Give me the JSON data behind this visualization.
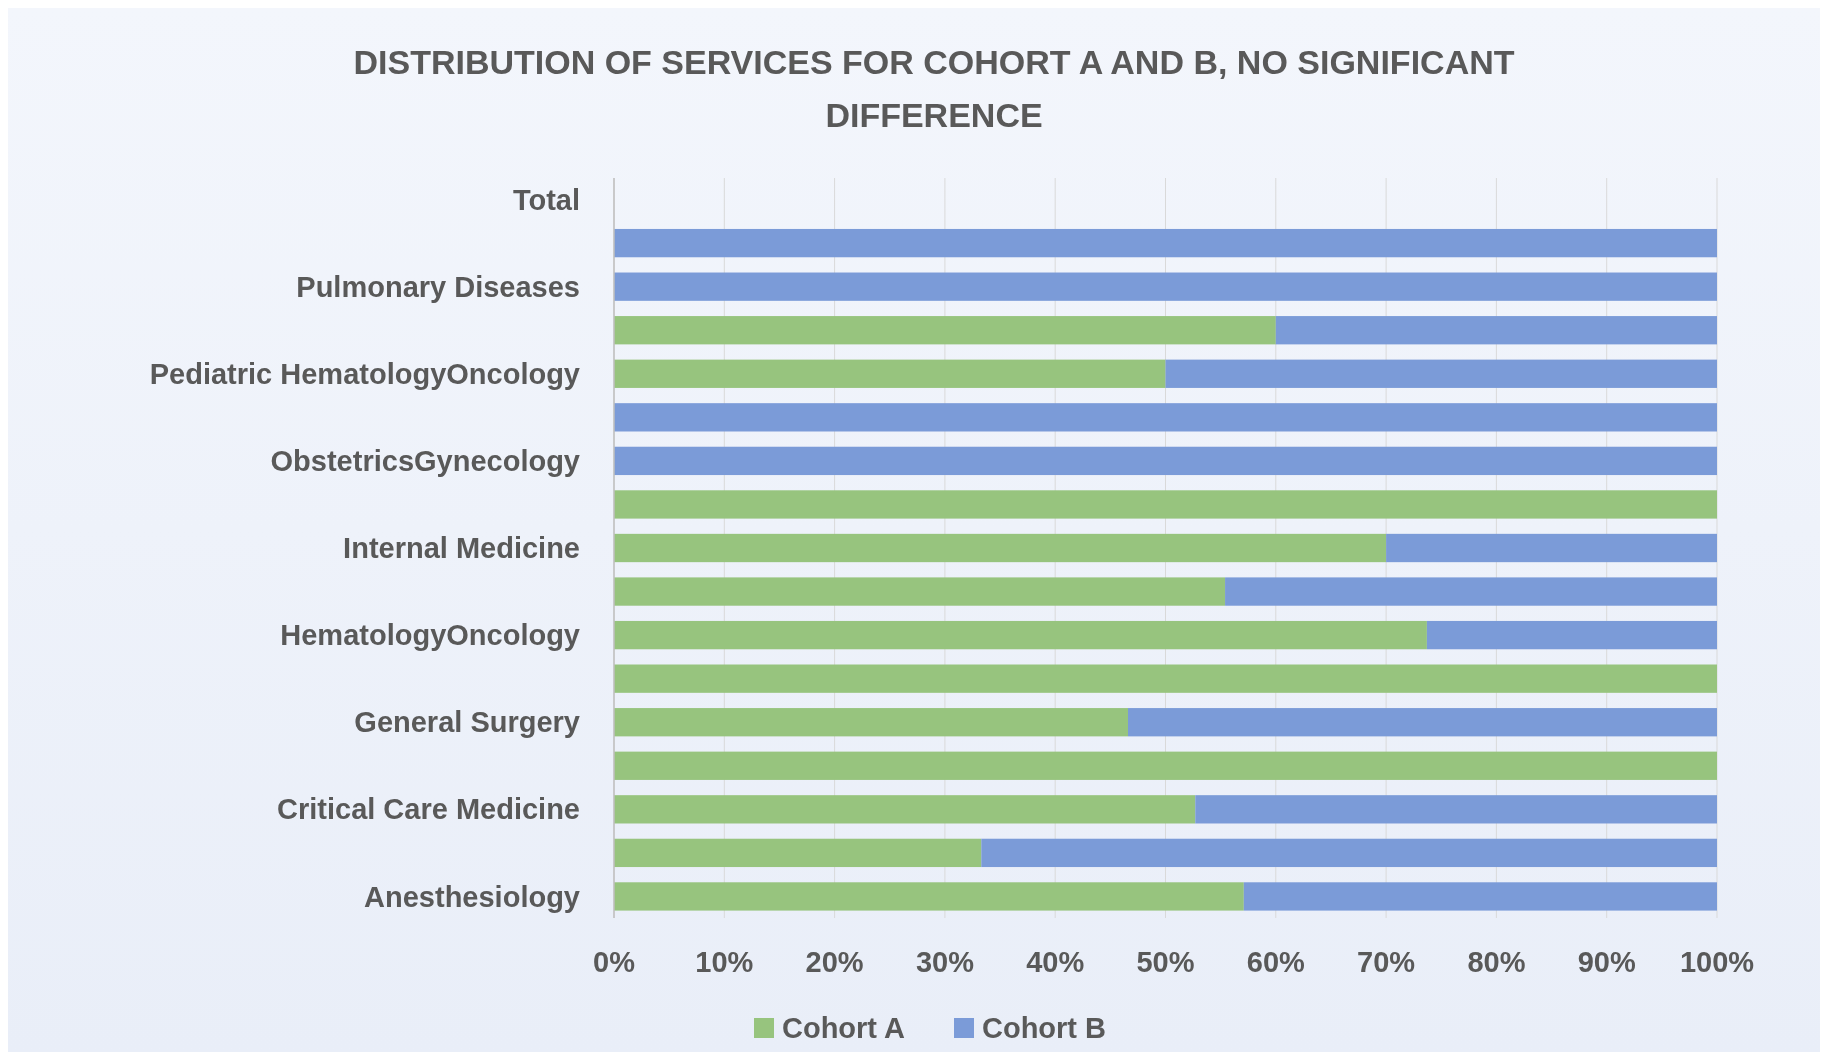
{
  "chart_data": {
    "type": "bar",
    "orientation": "horizontal",
    "stacked": true,
    "title": "DISTRIBUTION OF SERVICES FOR COHORT A AND B, NO SIGNIFICANT DIFFERENCE",
    "categories": [
      "Total",
      null,
      "Pulmonary Diseases",
      null,
      "Pediatric HematologyOncology",
      null,
      "ObstetricsGynecology",
      null,
      "Internal Medicine",
      null,
      "HematologyOncology",
      null,
      "General Surgery",
      null,
      "Critical Care Medicine",
      null,
      "Anesthesiology"
    ],
    "series": [
      {
        "name": "Cohort A",
        "color": "#97c47e",
        "values": [
          null,
          0,
          0,
          0.6,
          0.5,
          0,
          0,
          1,
          0.7,
          0.554,
          0.737,
          1,
          0.466,
          1,
          0.527,
          0.333,
          0.571
        ]
      },
      {
        "name": "Cohort B",
        "color": "#7b9bd8",
        "values": [
          null,
          1,
          1,
          0.4,
          0.5,
          1,
          1,
          0,
          0.3,
          0.446,
          0.263,
          0,
          0.534,
          0,
          0.473,
          0.667,
          0.429
        ]
      }
    ],
    "xlim": [
      0,
      1
    ],
    "xticks": [
      {
        "value": 0,
        "label": "0%"
      },
      {
        "value": 0.1,
        "label": "10%"
      },
      {
        "value": 0.2,
        "label": "20%"
      },
      {
        "value": 0.3,
        "label": "30%"
      },
      {
        "value": 0.4,
        "label": "40%"
      },
      {
        "value": 0.5,
        "label": "50%"
      },
      {
        "value": 0.6,
        "label": "60%"
      },
      {
        "value": 0.7,
        "label": "70%"
      },
      {
        "value": 0.8,
        "label": "80%"
      },
      {
        "value": 0.9,
        "label": "90%"
      },
      {
        "value": 1,
        "label": "100%"
      }
    ],
    "grid": "x",
    "legend": "bottom"
  }
}
